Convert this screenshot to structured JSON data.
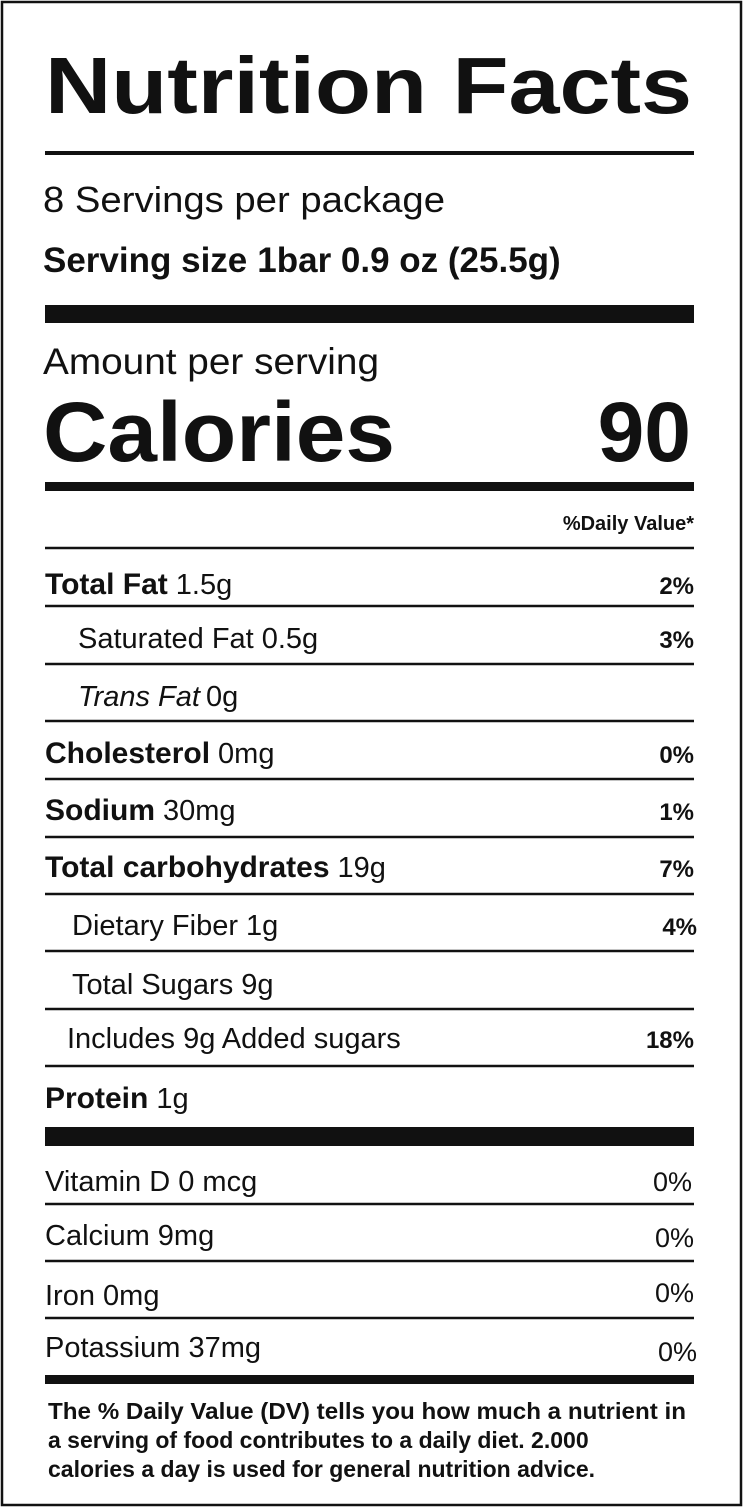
{
  "title": "Nutrition Facts",
  "servings": "8 Servings per package",
  "serving_size": {
    "label": "Serving size",
    "value": "1bar 0.9 oz (25.5g)"
  },
  "amount_per_serving": "Amount per serving",
  "calories": {
    "label": "Calories",
    "value": "90"
  },
  "daily_value_header": "%Daily Value*",
  "nutrients": [
    {
      "name": "Total Fat",
      "amount": "1.5g",
      "dv": "2%"
    },
    {
      "name": "Saturated Fat",
      "amount": "0.5g",
      "dv": "3%"
    },
    {
      "name": "Trans Fat",
      "amount": "0g"
    },
    {
      "name": "Cholesterol",
      "amount": "0mg",
      "dv": "0%"
    },
    {
      "name": "Sodium",
      "amount": "30mg",
      "dv": "1%"
    },
    {
      "name": "Total carbohydrates",
      "amount": "19g",
      "dv": "7%"
    },
    {
      "name": "Dietary Fiber",
      "amount": "1g",
      "dv": "4%"
    },
    {
      "name": "Total Sugars",
      "amount": "9g"
    },
    {
      "name": "Includes 9g Added sugars",
      "dv": "18%"
    },
    {
      "name": "Protein",
      "amount": "1g"
    }
  ],
  "vitamins": [
    {
      "name": "Vitamin D 0 mcg",
      "dv": "0%"
    },
    {
      "name": "Calcium 9mg",
      "dv": "0%"
    },
    {
      "name": "Iron 0mg",
      "dv": "0%"
    },
    {
      "name": "Potassium 37mg",
      "dv": "0%"
    }
  ],
  "footnote": [
    "The % Daily Value (DV) tells you how much a nutrient in",
    "a serving of food contributes to a daily diet. 2.000",
    "calories a day is used for general nutrition advice."
  ]
}
